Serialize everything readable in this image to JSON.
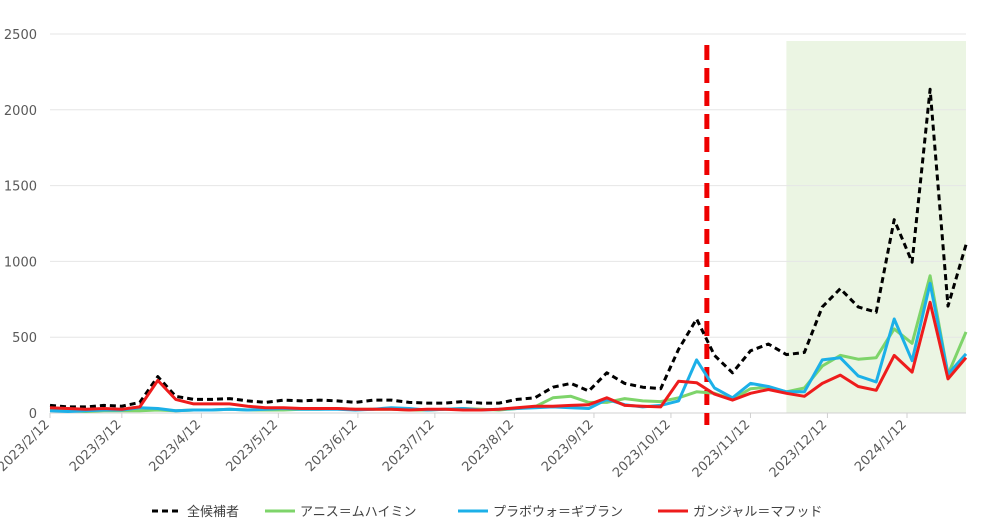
{
  "chart_data": {
    "type": "line",
    "title": "",
    "xlabel": "",
    "ylabel": "",
    "ylim": [
      0,
      2500
    ],
    "y_ticks": [
      "0",
      "500",
      "1000",
      "1500",
      "2000",
      "2500"
    ],
    "x_tick_labels": [
      "2023/2/12",
      "2023/3/12",
      "2023/4/12",
      "2023/5/12",
      "2023/6/12",
      "2023/7/12",
      "2023/8/12",
      "2023/9/12",
      "2023/10/12",
      "2023/11/12",
      "2023/12/12",
      "2024/1/12"
    ],
    "x": [
      "2023/2/12",
      "2023/2/19",
      "2023/2/26",
      "2023/3/5",
      "2023/3/12",
      "2023/3/19",
      "2023/3/26",
      "2023/4/2",
      "2023/4/9",
      "2023/4/16",
      "2023/4/23",
      "2023/4/30",
      "2023/5/7",
      "2023/5/14",
      "2023/5/21",
      "2023/5/28",
      "2023/6/4",
      "2023/6/11",
      "2023/6/18",
      "2023/6/25",
      "2023/7/2",
      "2023/7/9",
      "2023/7/16",
      "2023/7/23",
      "2023/7/30",
      "2023/8/6",
      "2023/8/13",
      "2023/8/20",
      "2023/8/27",
      "2023/9/3",
      "2023/9/10",
      "2023/9/17",
      "2023/9/24",
      "2023/10/1",
      "2023/10/8",
      "2023/10/15",
      "2023/10/22",
      "2023/10/29",
      "2023/11/5",
      "2023/11/12",
      "2023/11/19",
      "2023/11/26",
      "2023/12/3",
      "2023/12/10",
      "2023/12/17",
      "2023/12/24",
      "2023/12/31",
      "2024/1/7",
      "2024/1/14",
      "2024/1/21",
      "2024/1/28",
      "2024/2/4"
    ],
    "grid": true,
    "legend_position": "bottom",
    "series": [
      {
        "name": "全候補者",
        "color": "#000000",
        "style": "dashed",
        "values": [
          50,
          40,
          40,
          50,
          45,
          70,
          240,
          110,
          90,
          90,
          95,
          80,
          70,
          85,
          80,
          85,
          80,
          70,
          85,
          85,
          70,
          65,
          65,
          75,
          65,
          65,
          90,
          100,
          170,
          195,
          145,
          265,
          195,
          170,
          160,
          420,
          620,
          380,
          265,
          410,
          455,
          385,
          400,
          700,
          820,
          700,
          665,
          1275,
          995,
          2135,
          705,
          1110
        ]
      },
      {
        "name": "アニス＝ムハイミン",
        "color": "#7ed46a",
        "style": "solid",
        "values": [
          20,
          15,
          10,
          15,
          15,
          15,
          20,
          15,
          20,
          20,
          25,
          20,
          20,
          20,
          25,
          25,
          30,
          25,
          25,
          25,
          20,
          20,
          25,
          30,
          25,
          20,
          30,
          40,
          100,
          110,
          70,
          70,
          95,
          80,
          75,
          100,
          140,
          130,
          90,
          160,
          170,
          140,
          165,
          310,
          380,
          355,
          365,
          555,
          460,
          905,
          255,
          535
        ]
      },
      {
        "name": "プラボウォ＝ギブラン",
        "color": "#1cb0e8",
        "style": "solid",
        "values": [
          15,
          10,
          15,
          20,
          20,
          35,
          30,
          15,
          20,
          20,
          25,
          20,
          25,
          30,
          25,
          25,
          25,
          20,
          25,
          35,
          30,
          20,
          25,
          30,
          20,
          25,
          30,
          35,
          40,
          35,
          30,
          90,
          55,
          40,
          50,
          80,
          350,
          165,
          100,
          195,
          175,
          140,
          140,
          350,
          365,
          245,
          205,
          620,
          345,
          855,
          255,
          390
        ]
      },
      {
        "name": "ガンジャル＝マフッド",
        "color": "#ee1c1c",
        "style": "solid",
        "values": [
          35,
          30,
          25,
          30,
          25,
          40,
          215,
          90,
          60,
          60,
          60,
          45,
          35,
          35,
          30,
          30,
          30,
          25,
          25,
          25,
          20,
          25,
          25,
          20,
          20,
          25,
          35,
          45,
          45,
          50,
          55,
          100,
          50,
          45,
          40,
          210,
          200,
          125,
          85,
          130,
          155,
          130,
          110,
          195,
          250,
          175,
          150,
          380,
          270,
          730,
          225,
          365
        ]
      }
    ],
    "highlight_band": {
      "from": "2023/11/26",
      "to": "2024/2/4",
      "color": "#ebf5e3"
    },
    "event_marker": {
      "at": "2023/10/26",
      "color": "#ee0000",
      "style": "dashed"
    }
  }
}
